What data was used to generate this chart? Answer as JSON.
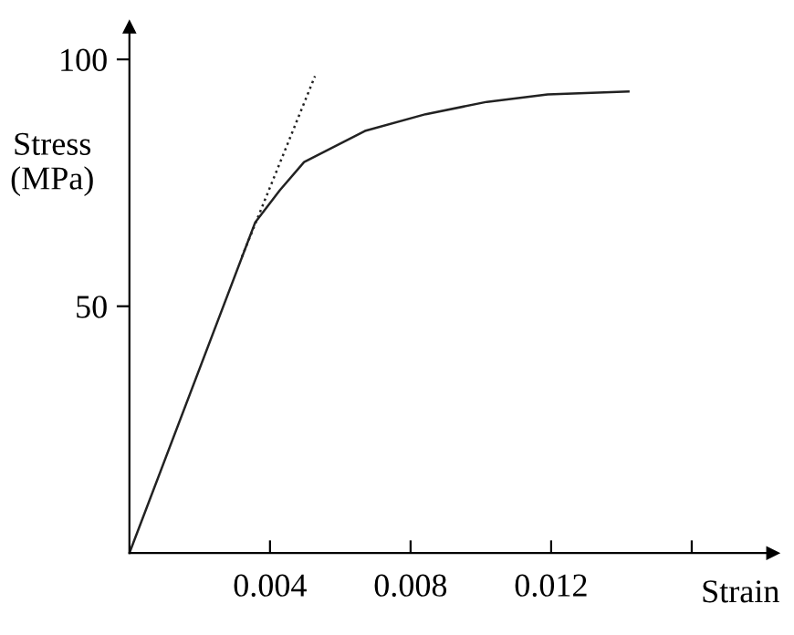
{
  "chart_data": {
    "type": "line",
    "xlabel": "Strain",
    "ylabel": "Stress\n(MPa)",
    "xlim": [
      0,
      0.0183
    ],
    "ylim": [
      0,
      106.5
    ],
    "xticks": [
      0.004,
      0.008,
      0.012,
      {
        "value": 0.016,
        "label": null
      }
    ],
    "yticks": [
      50,
      100
    ],
    "grid": false,
    "legend": false,
    "series": [
      {
        "color": "#222222",
        "line_style": "solid",
        "x": [
          0,
          0.00358,
          0.00428,
          0.00497,
          0.0067,
          0.00843,
          0.01017,
          0.0119,
          0.0142
        ],
        "values": [
          0,
          67,
          73.5,
          79.2,
          85.5,
          88.9,
          91.4,
          92.9,
          93.5
        ]
      },
      {
        "color": "#222222",
        "line_style": "dotted",
        "x": [
          0.0032,
          0.00528
        ],
        "values": [
          60,
          96.6
        ]
      }
    ]
  }
}
